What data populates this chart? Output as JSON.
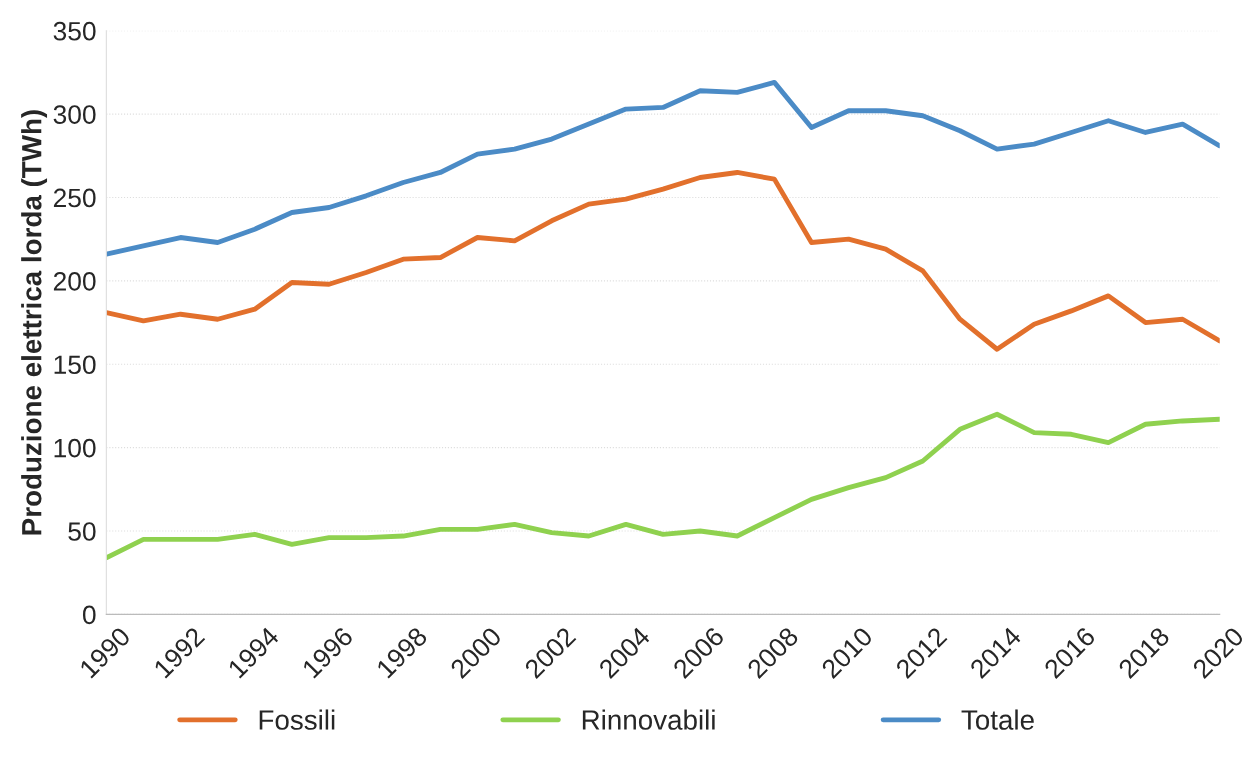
{
  "chart_data": {
    "type": "line",
    "ylabel": "Produzione elettrica lorda (TWh)",
    "x": [
      1990,
      1991,
      1992,
      1993,
      1994,
      1995,
      1996,
      1997,
      1998,
      1999,
      2000,
      2001,
      2002,
      2003,
      2004,
      2005,
      2006,
      2007,
      2008,
      2009,
      2010,
      2011,
      2012,
      2013,
      2014,
      2015,
      2016,
      2017,
      2018,
      2019,
      2020
    ],
    "series": [
      {
        "name": "Fossili",
        "color": "#e2702c",
        "values": [
          181,
          176,
          180,
          177,
          183,
          199,
          198,
          205,
          213,
          214,
          226,
          224,
          236,
          246,
          249,
          255,
          262,
          265,
          261,
          223,
          225,
          219,
          206,
          177,
          159,
          174,
          182,
          191,
          175,
          177,
          164
        ]
      },
      {
        "name": "Rinnovabili",
        "color": "#8fd14f",
        "values": [
          34,
          45,
          45,
          45,
          48,
          42,
          46,
          46,
          47,
          51,
          51,
          54,
          49,
          47,
          54,
          48,
          50,
          47,
          58,
          69,
          76,
          82,
          92,
          111,
          120,
          109,
          108,
          103,
          114,
          116,
          117
        ]
      },
      {
        "name": "Totale",
        "color": "#4b8bc6",
        "values": [
          216,
          221,
          226,
          223,
          231,
          241,
          244,
          251,
          259,
          265,
          276,
          279,
          285,
          294,
          303,
          304,
          314,
          313,
          319,
          292,
          302,
          302,
          299,
          290,
          279,
          282,
          289,
          296,
          289,
          294,
          281
        ]
      }
    ],
    "xlim": [
      1990,
      2020
    ],
    "xticks": [
      1990,
      1992,
      1994,
      1996,
      1998,
      2000,
      2002,
      2004,
      2006,
      2008,
      2010,
      2012,
      2014,
      2016,
      2018,
      2020
    ],
    "ylim": [
      0,
      350
    ],
    "yticks": [
      0,
      50,
      100,
      150,
      200,
      250,
      300,
      350
    ],
    "grid": "y",
    "legend": "bottom",
    "marker": "none",
    "line_style": "solid"
  }
}
